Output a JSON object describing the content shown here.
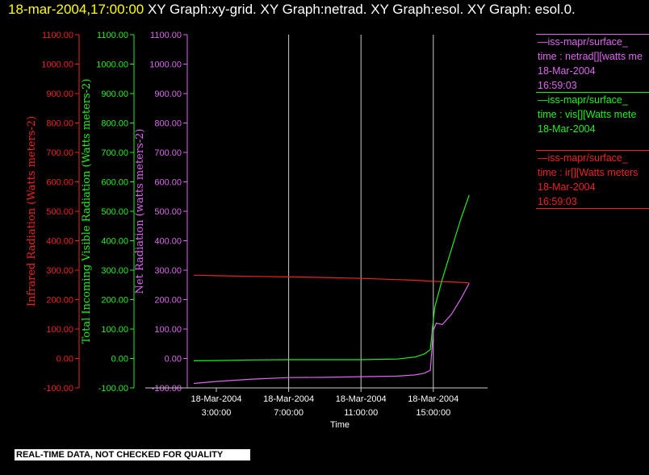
{
  "header": {
    "timestamp": "18-mar-2004,17:00:00",
    "graphs": "  XY Graph:xy-grid.  XY Graph:netrad.  XY Graph:esol.  XY Graph: esol.0."
  },
  "disclaimer": "REAL-TIME DATA, NOT CHECKED FOR QUALITY",
  "legend": [
    {
      "line1": "—iss-mapr/surface_",
      "line2": "time : netrad[][watts me",
      "line3": "18-Mar-2004",
      "line4": "16:59:03",
      "color": "#dd66ee"
    },
    {
      "line1": "—iss-mapr/surface_",
      "line2": "time : vis[][Watts mete",
      "line3": "18-Mar-2004",
      "line4": "",
      "color": "#22ee22"
    },
    {
      "line1": "—iss-mapr/surface_",
      "line2": "time : ir[][Watts meters",
      "line3": "18-Mar-2004",
      "line4": "16:59:03",
      "color": "#ee2222"
    }
  ],
  "chart_data": {
    "type": "line",
    "xlabel": "Time",
    "x_ticks": [
      {
        "date": "18-Mar-2004",
        "time": "3:00:00"
      },
      {
        "date": "18-Mar-2004",
        "time": "7:00:00"
      },
      {
        "date": "18-Mar-2004",
        "time": "11:00:00"
      },
      {
        "date": "18-Mar-2004",
        "time": "15:00:00"
      }
    ],
    "xlim": [
      "18-Mar-2004 01:45",
      "18-Mar-2004 18:00"
    ],
    "x_grid": [
      "7:00:00",
      "11:00:00",
      "15:00:00"
    ],
    "y_ticks": [
      "1100.00",
      "1000.00",
      "900.00",
      "800.00",
      "700.00",
      "600.00",
      "500.00",
      "400.00",
      "300.00",
      "200.00",
      "100.00",
      "0.00",
      "-100.00"
    ],
    "ylim": [
      -100,
      1100
    ],
    "axes": [
      {
        "label": "Infrared Radiation (Watts meters-2)",
        "color": "#ee2222"
      },
      {
        "label": "Total Incoming Visible Radiation (Watts meters-2)",
        "color": "#22ee22"
      },
      {
        "label": "Net Radiation (watts meters-2)",
        "color": "#dd66ee"
      }
    ],
    "series": [
      {
        "color": "#ee2222",
        "x": [
          "01:45",
          "03:00",
          "05:00",
          "07:00",
          "09:00",
          "11:00",
          "13:00",
          "14:30",
          "15:00",
          "16:00",
          "16:59"
        ],
        "y": [
          283,
          281,
          279,
          277,
          275,
          272,
          268,
          264,
          262,
          260,
          257
        ]
      },
      {
        "color": "#22ee22",
        "x": [
          "01:45",
          "03:00",
          "05:00",
          "07:00",
          "09:00",
          "11:00",
          "13:00",
          "14:00",
          "14:30",
          "14:50",
          "15:00",
          "15:05",
          "15:30",
          "16:00",
          "16:30",
          "16:59"
        ],
        "y": [
          -8,
          -7,
          -5,
          -4,
          -4,
          -4,
          -2,
          5,
          15,
          30,
          130,
          175,
          270,
          370,
          470,
          555
        ]
      },
      {
        "color": "#dd66ee",
        "x": [
          "01:45",
          "03:00",
          "05:00",
          "07:00",
          "09:00",
          "11:00",
          "13:00",
          "14:00",
          "14:30",
          "14:50",
          "15:00",
          "15:10",
          "15:30",
          "16:00",
          "16:30",
          "16:59"
        ],
        "y": [
          -85,
          -78,
          -70,
          -65,
          -64,
          -62,
          -60,
          -56,
          -50,
          -40,
          95,
          120,
          115,
          150,
          200,
          255
        ]
      }
    ]
  }
}
